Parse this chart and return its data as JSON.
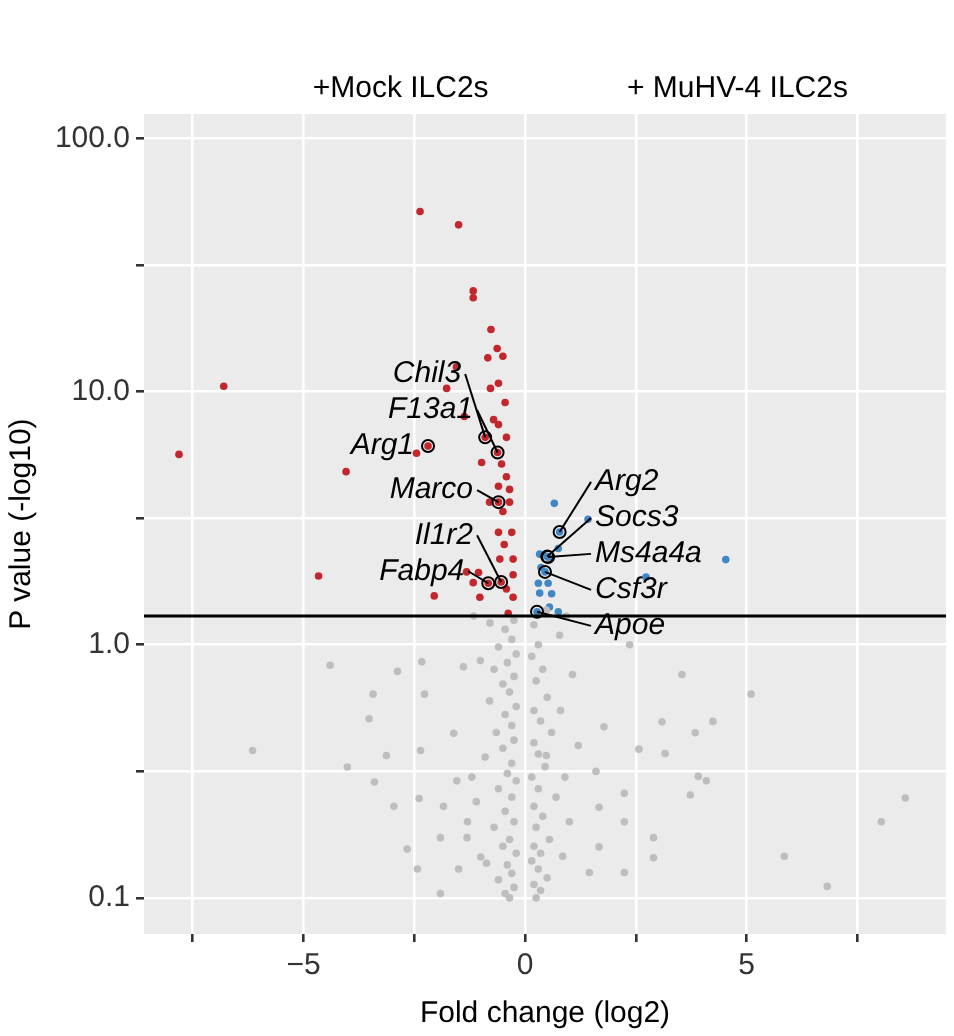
{
  "chart_data": {
    "type": "scatter",
    "xlabel": "Fold change (log2)",
    "ylabel": "P value (-log10)",
    "xlim": [
      -8.6,
      9.5
    ],
    "ylim": [
      0.072,
      125
    ],
    "log": "y",
    "xticks": [
      {
        "value": -7.5,
        "label": null
      },
      {
        "value": -5,
        "label": "−5"
      },
      {
        "value": -2.5,
        "label": null
      },
      0,
      {
        "value": 2.5,
        "label": null
      },
      5,
      {
        "value": 7.5,
        "label": null
      }
    ],
    "yticks": [
      0.1,
      {
        "value": 0.316,
        "label": null
      },
      {
        "value": 1,
        "label": "1.0"
      },
      {
        "value": 3.16,
        "label": null
      },
      {
        "value": 10,
        "label": "10.0"
      },
      {
        "value": 31.6,
        "label": null
      },
      {
        "value": 100,
        "label": "100.0"
      }
    ],
    "grid": true,
    "legend": false,
    "marker": "circle",
    "ref_lines": [
      {
        "axis": "y",
        "value": 1.3,
        "color": "#000000"
      }
    ],
    "annotations": [
      "+Mock ILC2s",
      "+ MuHV-4 ILC2s",
      {
        "text": "Chil3",
        "x": -0.9,
        "y": 6.6
      },
      {
        "text": "Arg1",
        "x": -2.19,
        "y": 6.1
      },
      {
        "text": "F13a1",
        "x": -0.62,
        "y": 5.75
      },
      {
        "text": "Marco",
        "x": -0.6,
        "y": 3.66
      },
      {
        "text": "Fabp4",
        "x": -0.83,
        "y": 1.75
      },
      {
        "text": "Il1r2",
        "x": -0.54,
        "y": 1.77
      },
      {
        "text": "Arg2",
        "x": 0.78,
        "y": 2.79
      },
      {
        "text": "Socs3",
        "x": 0.5,
        "y": 2.23
      },
      {
        "text": "Ms4a4a",
        "x": 0.52,
        "y": 2.22
      },
      {
        "text": "Csf3r",
        "x": 0.45,
        "y": 1.94
      },
      {
        "text": "Apoe",
        "x": 0.27,
        "y": 1.35
      }
    ],
    "series": [
      {
        "color": "#bebebe",
        "x": [
          -4.4,
          -2.88,
          -2.33,
          -3.43,
          -2.27,
          -3.52,
          -6.15,
          -4.01,
          -3.4,
          -2.96,
          -2.66,
          -3.13,
          -2.36,
          -2.39,
          -2.43,
          -1.91,
          3.54,
          5.1,
          3.09,
          4.24,
          3.84,
          2.57,
          3.16,
          3.91,
          4.09,
          3.73,
          8.58,
          8.04,
          2.9,
          2.9,
          5.85,
          6.82,
          2.36,
          2.24,
          2.24,
          1.67,
          1.78,
          1.07,
          1.45,
          2.24,
          1.6,
          0.85,
          -1.61,
          -1.54,
          -1.01,
          -1.39,
          -1.16,
          -0.79,
          0.93,
          0.48,
          0.78,
          -1.84,
          -1.91,
          -0.87,
          1.67,
          0.48,
          -1.31,
          -0.25,
          -0.45,
          -0.3,
          -0.6,
          -0.2,
          -0.4,
          -0.7,
          -0.25,
          -0.5,
          -0.35,
          -0.8,
          -0.2,
          -0.45,
          -0.3,
          -0.65,
          -0.25,
          -0.5,
          -0.9,
          -0.3,
          -0.4,
          -0.2,
          -0.6,
          -0.3,
          -1.1,
          -0.45,
          -0.25,
          -0.7,
          -0.35,
          -0.5,
          -0.2,
          -1.0,
          -0.4,
          -0.3,
          -0.6,
          -0.25,
          -0.45,
          -0.35,
          -1.3,
          -1.2,
          -1.5,
          0.2,
          0.3,
          0.15,
          0.4,
          0.25,
          0.5,
          0.2,
          0.35,
          0.6,
          0.2,
          0.3,
          0.45,
          0.15,
          0.3,
          0.7,
          0.2,
          0.4,
          0.25,
          0.55,
          0.2,
          0.35,
          0.15,
          0.3,
          0.5,
          0.2,
          0.35,
          0.25,
          0.9,
          1.0,
          1.2,
          0.8
        ],
        "values": [
          0.83,
          0.785,
          0.856,
          0.638,
          0.638,
          0.51,
          0.382,
          0.329,
          0.287,
          0.23,
          0.156,
          0.365,
          0.382,
          0.247,
          0.13,
          0.104,
          0.763,
          0.638,
          0.496,
          0.498,
          0.449,
          0.387,
          0.372,
          0.302,
          0.29,
          0.255,
          0.248,
          0.2,
          0.173,
          0.144,
          0.146,
          0.111,
          1.0,
          0.259,
          0.2,
          0.228,
          0.474,
          0.763,
          0.126,
          0.126,
          0.316,
          0.146,
          0.447,
          0.29,
          0.866,
          0.818,
          1.3,
          1.22,
          1.3,
          1.37,
          1.09,
          0.23,
          0.173,
          0.137,
          0.159,
          0.365,
          0.173,
          1.25,
          1.15,
          1.05,
          0.98,
          0.92,
          0.85,
          0.8,
          0.75,
          0.7,
          0.65,
          0.6,
          0.57,
          0.53,
          0.48,
          0.45,
          0.42,
          0.39,
          0.36,
          0.34,
          0.31,
          0.29,
          0.27,
          0.25,
          0.24,
          0.22,
          0.2,
          0.19,
          0.17,
          0.16,
          0.15,
          0.145,
          0.135,
          0.125,
          0.118,
          0.11,
          0.104,
          0.1,
          0.2,
          0.3,
          0.13,
          1.2,
          1.0,
          0.9,
          0.8,
          0.72,
          0.62,
          0.55,
          0.5,
          0.45,
          0.41,
          0.37,
          0.33,
          0.3,
          0.27,
          0.25,
          0.23,
          0.21,
          0.19,
          0.17,
          0.16,
          0.15,
          0.14,
          0.13,
          0.12,
          0.113,
          0.107,
          0.1,
          0.3,
          0.2,
          0.4,
          0.55
        ]
      },
      {
        "color": "#c1272d",
        "x": [
          -2.37,
          -1.5,
          -1.17,
          -1.17,
          -0.77,
          -0.63,
          -0.84,
          -0.5,
          -1.55,
          -0.6,
          -0.78,
          -1.77,
          -0.45,
          -6.8,
          -7.81,
          -1.37,
          -0.71,
          -0.6,
          -0.42,
          -2.45,
          -0.98,
          -0.53,
          -4.04,
          -0.42,
          -0.6,
          -0.35,
          -0.8,
          -0.5,
          -0.35,
          -0.6,
          -0.3,
          -0.47,
          -0.57,
          -0.27,
          -1.32,
          -1.05,
          -0.27,
          -4.66,
          -0.42,
          -1.17,
          -2.05,
          -0.27,
          -1.02,
          -0.38,
          -0.9,
          -2.19,
          -0.62,
          -0.6,
          -0.83,
          -0.54
        ],
        "values": [
          51.5,
          45.6,
          25,
          23.5,
          17.6,
          14.8,
          13.6,
          13.8,
          12.5,
          10.8,
          10.3,
          10.3,
          9.06,
          10.5,
          5.65,
          7.98,
          7.75,
          7.41,
          6.6,
          5.71,
          5.25,
          5.18,
          4.83,
          4.61,
          4.23,
          4.11,
          3.66,
          3.36,
          3.66,
          2.78,
          2.78,
          2.49,
          2.18,
          2.18,
          1.94,
          1.93,
          1.89,
          1.87,
          1.66,
          1.76,
          1.56,
          1.54,
          1.54,
          1.33,
          6.6,
          6.1,
          5.75,
          3.66,
          1.75,
          1.77
        ]
      },
      {
        "color": "#3f88c5",
        "x": [
          0.66,
          1.42,
          0.75,
          0.33,
          0.36,
          4.53,
          2.73,
          0.3,
          0.52,
          0.33,
          0.6,
          0.55,
          0.75,
          0.78,
          0.5,
          0.52,
          0.45,
          0.27
        ],
        "values": [
          3.62,
          3.13,
          2.4,
          2.28,
          2.02,
          2.17,
          1.85,
          1.75,
          1.75,
          1.6,
          1.59,
          1.41,
          1.35,
          2.79,
          2.23,
          2.22,
          1.94,
          1.35
        ]
      }
    ]
  }
}
